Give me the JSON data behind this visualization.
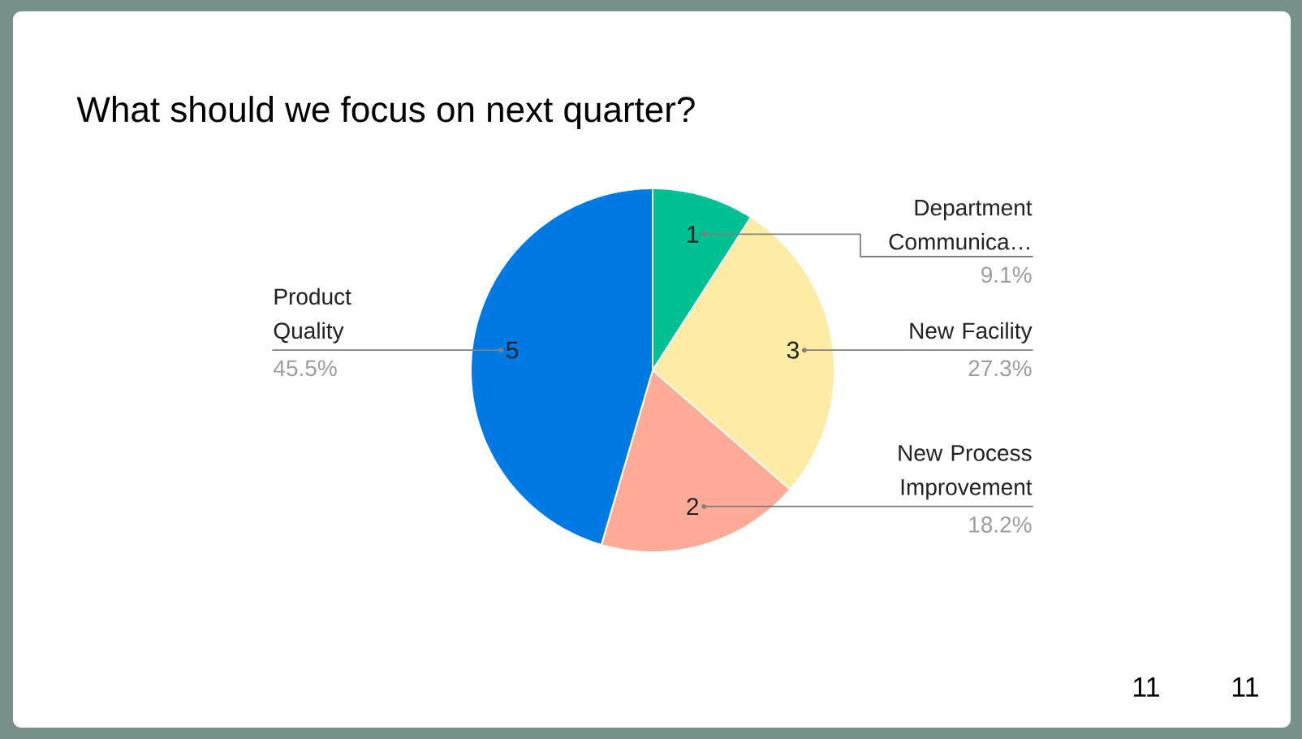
{
  "chart_data": {
    "type": "pie",
    "title": "What should we focus on next quarter?",
    "categories": [
      "Department Communica…",
      "New Facility",
      "New Process Improvement",
      "Product Quality"
    ],
    "values": [
      1,
      3,
      2,
      5
    ],
    "colors": [
      "#00c193",
      "#ffeca4",
      "#ffab98",
      "#007ae3"
    ],
    "data_labels": true,
    "annotations": [
      {
        "text": "9.1%",
        "x": "Department Communica…"
      },
      {
        "text": "27.3%",
        "x": "New Facility"
      },
      {
        "text": "18.2%",
        "x": "New Process Improvement"
      },
      {
        "text": "45.5%",
        "x": "Product Quality"
      },
      "11",
      "11"
    ]
  }
}
